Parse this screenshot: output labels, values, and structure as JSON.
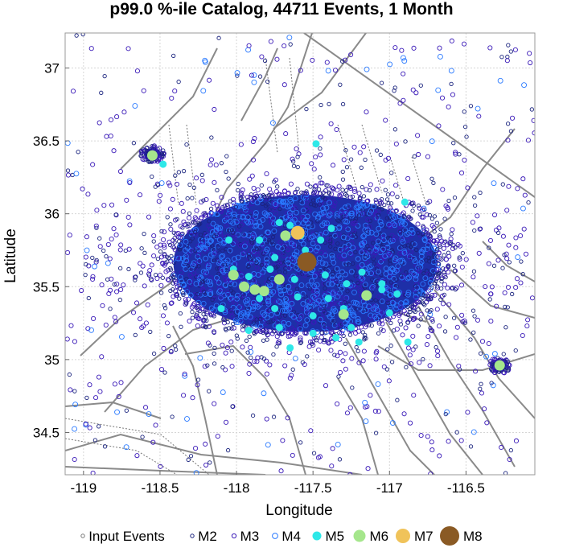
{
  "chart_data": {
    "type": "scatter",
    "title": "p99.0 %-ile Catalog, 44711 Events, 1 Month",
    "xlabel": "Longitude",
    "ylabel": "Latitude",
    "xlim": [
      -119.12,
      -116.05
    ],
    "ylim": [
      34.21,
      37.24
    ],
    "x_ticks": [
      -119,
      -118.5,
      -118,
      -117.5,
      -117,
      -116.5
    ],
    "y_ticks": [
      34.5,
      35,
      35.5,
      36,
      36.5,
      37
    ],
    "x_tick_labels": [
      "-119",
      "-118.5",
      "-118",
      "-117.5",
      "-117",
      "-116.5"
    ],
    "y_tick_labels": [
      "34.5",
      "35",
      "35.5",
      "36",
      "36.5",
      "37"
    ],
    "grid": true,
    "legend_position": "bottom",
    "clusters": [
      {
        "lon": -117.55,
        "lat": 35.66,
        "radius_lon": 0.88,
        "radius_lat": 0.48
      },
      {
        "lon": -118.55,
        "lat": 36.41,
        "radius_lon": 0.07,
        "radius_lat": 0.05
      },
      {
        "lon": -116.28,
        "lat": 34.96,
        "radius_lon": 0.06,
        "radius_lat": 0.05
      }
    ],
    "series": [
      {
        "name": "Input Events",
        "color": "#777777",
        "filled": false
      },
      {
        "name": "M2",
        "color": "#1a237e",
        "filled": false
      },
      {
        "name": "M3",
        "color": "#3a1ab8",
        "filled": false
      },
      {
        "name": "M4",
        "color": "#2979ff",
        "filled": false
      },
      {
        "name": "M5",
        "color": "#2ee8e8",
        "filled": true,
        "points": [
          [
            -117.72,
            35.94
          ],
          [
            -117.65,
            35.92
          ],
          [
            -117.58,
            35.85
          ],
          [
            -117.45,
            35.82
          ],
          [
            -117.38,
            35.9
          ],
          [
            -117.85,
            35.82
          ],
          [
            -117.55,
            35.75
          ],
          [
            -117.75,
            35.7
          ],
          [
            -118.02,
            35.62
          ],
          [
            -117.92,
            35.57
          ],
          [
            -117.62,
            35.55
          ],
          [
            -117.42,
            35.58
          ],
          [
            -117.28,
            35.52
          ],
          [
            -117.18,
            35.6
          ],
          [
            -117.05,
            35.52
          ],
          [
            -117.85,
            35.42
          ],
          [
            -117.6,
            35.43
          ],
          [
            -117.4,
            35.42
          ],
          [
            -117.3,
            35.35
          ],
          [
            -117.05,
            35.48
          ],
          [
            -117.92,
            35.2
          ],
          [
            -117.72,
            35.22
          ],
          [
            -117.5,
            35.18
          ],
          [
            -117.35,
            35.15
          ],
          [
            -117.2,
            35.12
          ],
          [
            -117.0,
            35.32
          ],
          [
            -116.88,
            35.12
          ],
          [
            -117.65,
            35.08
          ],
          [
            -118.1,
            35.35
          ],
          [
            -118.05,
            35.82
          ],
          [
            -117.78,
            35.62
          ],
          [
            -117.5,
            35.3
          ],
          [
            -116.95,
            35.45
          ],
          [
            -117.25,
            35.22
          ],
          [
            -117.75,
            35.35
          ],
          [
            -117.48,
            36.48
          ],
          [
            -118.48,
            36.34
          ],
          [
            -116.9,
            36.08
          ]
        ]
      },
      {
        "name": "M6",
        "color": "#a5e68c",
        "filled": true,
        "points": [
          [
            -117.68,
            35.85
          ],
          [
            -118.02,
            35.58
          ],
          [
            -117.95,
            35.5
          ],
          [
            -117.88,
            35.48
          ],
          [
            -117.72,
            35.55
          ],
          [
            -117.82,
            35.47
          ],
          [
            -117.15,
            35.44
          ],
          [
            -117.3,
            35.31
          ],
          [
            -118.55,
            36.4
          ],
          [
            -116.28,
            34.96
          ]
        ]
      },
      {
        "name": "M7",
        "color": "#f0c35a",
        "filled": true,
        "points": [
          [
            -117.6,
            35.87
          ]
        ]
      },
      {
        "name": "M8",
        "color": "#8a5a24",
        "filled": true,
        "points": [
          [
            -117.54,
            35.67
          ]
        ]
      }
    ]
  }
}
